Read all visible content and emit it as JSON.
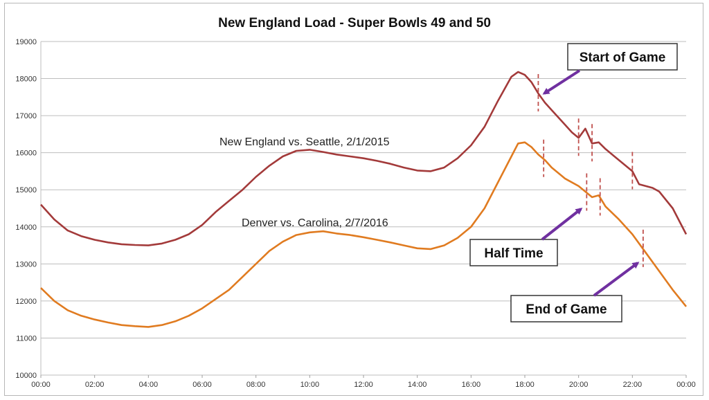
{
  "chart_data": {
    "type": "line",
    "title": "New England Load - Super Bowls 49 and 50",
    "xlabel": "",
    "ylabel": "",
    "ylim": [
      10000,
      19000
    ],
    "yticks": [
      "10000",
      "11000",
      "12000",
      "13000",
      "14000",
      "15000",
      "16000",
      "17000",
      "18000",
      "19000"
    ],
    "xlim": [
      0,
      24
    ],
    "xticks": [
      "00:00",
      "02:00",
      "04:00",
      "06:00",
      "08:00",
      "10:00",
      "12:00",
      "14:00",
      "16:00",
      "18:00",
      "20:00",
      "22:00",
      "00:00"
    ],
    "grid": "horizontal",
    "series": [
      {
        "name": "New England vs. Seattle, 2/1/2015",
        "color": "#a33a3a",
        "x": [
          0,
          0.5,
          1,
          1.5,
          2,
          2.5,
          3,
          3.5,
          4,
          4.5,
          5,
          5.5,
          6,
          6.5,
          7,
          7.5,
          8,
          8.5,
          9,
          9.5,
          10,
          10.5,
          11,
          11.5,
          12,
          12.5,
          13,
          13.5,
          14,
          14.5,
          15,
          15.5,
          16,
          16.5,
          17,
          17.5,
          17.75,
          18,
          18.25,
          18.5,
          18.75,
          19,
          19.25,
          19.5,
          19.75,
          20,
          20.25,
          20.5,
          20.75,
          21,
          21.5,
          22,
          22.25,
          22.5,
          22.75,
          23,
          23.5,
          24
        ],
        "values": [
          14600,
          14200,
          13900,
          13750,
          13650,
          13580,
          13530,
          13510,
          13500,
          13550,
          13650,
          13800,
          14050,
          14400,
          14700,
          15000,
          15350,
          15650,
          15900,
          16050,
          16080,
          16020,
          15950,
          15900,
          15850,
          15780,
          15700,
          15600,
          15520,
          15500,
          15600,
          15850,
          16200,
          16700,
          17400,
          18050,
          18180,
          18100,
          17900,
          17600,
          17350,
          17150,
          16950,
          16750,
          16550,
          16400,
          16650,
          16250,
          16280,
          16100,
          15800,
          15500,
          15150,
          15100,
          15050,
          14950,
          14500,
          13800
        ]
      },
      {
        "name": "Denver vs. Carolina, 2/7/2016",
        "color": "#e07b20",
        "x": [
          0,
          0.5,
          1,
          1.5,
          2,
          2.5,
          3,
          3.5,
          4,
          4.5,
          5,
          5.5,
          6,
          6.5,
          7,
          7.5,
          8,
          8.5,
          9,
          9.5,
          10,
          10.5,
          11,
          11.5,
          12,
          12.5,
          13,
          13.5,
          14,
          14.5,
          15,
          15.5,
          16,
          16.5,
          17,
          17.5,
          17.75,
          18,
          18.25,
          18.5,
          18.75,
          19,
          19.5,
          20,
          20.25,
          20.5,
          20.75,
          21,
          21.5,
          22,
          22.5,
          23,
          23.5,
          24
        ],
        "values": [
          12350,
          12000,
          11750,
          11600,
          11500,
          11420,
          11350,
          11320,
          11300,
          11350,
          11450,
          11600,
          11800,
          12050,
          12300,
          12650,
          13000,
          13350,
          13600,
          13780,
          13850,
          13880,
          13820,
          13780,
          13720,
          13650,
          13580,
          13500,
          13420,
          13400,
          13500,
          13700,
          14000,
          14500,
          15200,
          15900,
          16250,
          16280,
          16150,
          15950,
          15800,
          15600,
          15300,
          15100,
          14950,
          14800,
          14850,
          14550,
          14200,
          13800,
          13300,
          12800,
          12300,
          11850
        ]
      }
    ],
    "annotations": {
      "series_label_1": "New England vs. Seattle, 2/1/2015",
      "series_label_2": "Denver vs. Carolina, 2/7/2016",
      "start_of_game": "Start of Game",
      "half_time": "Half Time",
      "end_of_game": "End of Game",
      "marker_color": "#c0504d",
      "arrow_color": "#7030a0"
    }
  }
}
